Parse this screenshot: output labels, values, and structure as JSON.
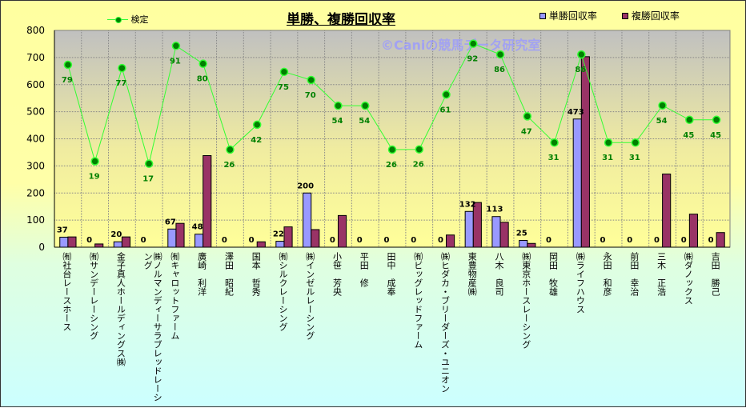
{
  "chart_data": {
    "type": "bar",
    "title": "単勝、複勝回収率",
    "watermark": "©Caniの競馬データ研究室",
    "ylim": [
      0,
      800
    ],
    "yticks": [
      0,
      100,
      200,
      300,
      400,
      500,
      600,
      700,
      800
    ],
    "grid": true,
    "legend_placement": "top",
    "categories": [
      "㈲社台レースホース",
      "㈲サンデーレーシング",
      "金子真人ホールディングス㈱",
      "㈱ノルマンディーサラブレッドレーシング",
      "㈲キャロットファーム",
      "廣崎　利洋",
      "澤田　昭紀",
      "国本　哲秀",
      "㈲シルクレーシング",
      "㈱インゼルレーシング",
      "小笹　芳央",
      "平田　修",
      "田中　成奉",
      "㈲ビッグレッドファーム",
      "㈱ヒダカ・ブリーダーズ・ユニオン",
      "東豊物産㈱",
      "八木　良司",
      "㈱東京ホースレーシング",
      "岡田　牧雄",
      "㈱ライフハウス",
      "永田　和彦",
      "前田　幸治",
      "三木　正浩",
      "㈱ダノックス",
      "吉田　勝己"
    ],
    "series": [
      {
        "name": "単勝回収率",
        "kind": "bar",
        "color": "#9999ff",
        "values": [
          37,
          0,
          20,
          0,
          67,
          48,
          0,
          0,
          22,
          200,
          0,
          0,
          0,
          0,
          0,
          132,
          113,
          25,
          0,
          473,
          0,
          0,
          0,
          0,
          0
        ],
        "labels": [
          "37",
          "0",
          "20",
          "0",
          "67",
          "48",
          "0",
          "0",
          "22",
          "200",
          "0",
          "0",
          "0",
          "0",
          "0",
          "132",
          "113",
          "25",
          "0",
          "473",
          "0",
          "0",
          "0",
          "0",
          "0"
        ]
      },
      {
        "name": "複勝回収率",
        "kind": "bar",
        "color": "#993366",
        "values": [
          38,
          12,
          38,
          0,
          88,
          338,
          0,
          20,
          75,
          65,
          117,
          0,
          0,
          0,
          45,
          165,
          92,
          14,
          0,
          703,
          0,
          0,
          270,
          122,
          54
        ]
      },
      {
        "name": "検定",
        "kind": "line",
        "color": "#33ff33",
        "marker": "#008000",
        "values": [
          673,
          317,
          661,
          308,
          743,
          677,
          360,
          452,
          647,
          617,
          522,
          522,
          360,
          361,
          563,
          751,
          711,
          483,
          386,
          711,
          386,
          386,
          523,
          470,
          470
        ],
        "labels": [
          "79",
          "19",
          "77",
          "17",
          "91",
          "80",
          "26",
          "42",
          "75",
          "70",
          "54",
          "54",
          "26",
          "26",
          "61",
          "92",
          "86",
          "47",
          "31",
          "86",
          "31",
          "31",
          "54",
          "45",
          "45"
        ]
      }
    ]
  }
}
